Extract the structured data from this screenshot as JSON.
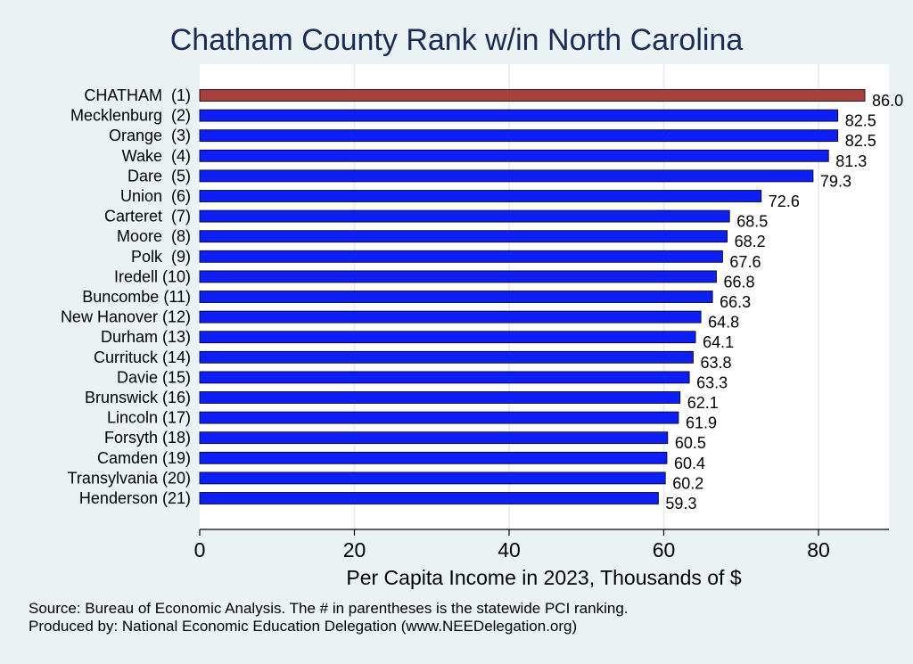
{
  "chart_data": {
    "type": "bar",
    "orientation": "horizontal",
    "title": "Chatham County Rank w/in North Carolina",
    "xlabel": "Per Capita Income in 2023, Thousands of $",
    "ylabel": "",
    "xlim": [
      0,
      88.7
    ],
    "xticks": [
      0,
      20,
      40,
      60,
      80
    ],
    "grid": true,
    "categories": [
      "CHATHAM  (1)",
      "Mecklenburg  (2)",
      "Orange  (3)",
      "Wake  (4)",
      "Dare  (5)",
      "Union  (6)",
      "Carteret  (7)",
      "Moore  (8)",
      "Polk  (9)",
      "Iredell (10)",
      "Buncombe (11)",
      "New Hanover (12)",
      "Durham (13)",
      "Currituck (14)",
      "Davie (15)",
      "Brunswick (16)",
      "Lincoln (17)",
      "Forsyth (18)",
      "Camden (19)",
      "Transylvania (20)",
      "Henderson (21)"
    ],
    "values": [
      86.0,
      82.5,
      82.5,
      81.3,
      79.3,
      72.6,
      68.5,
      68.2,
      67.6,
      66.8,
      66.3,
      64.8,
      64.1,
      63.8,
      63.3,
      62.1,
      61.9,
      60.5,
      60.4,
      60.2,
      59.3
    ],
    "value_labels": [
      "86.0",
      "82.5",
      "82.5",
      "81.3",
      "79.3",
      "72.6",
      "68.5",
      "68.2",
      "67.6",
      "66.8",
      "66.3",
      "64.8",
      "64.1",
      "63.8",
      "63.3",
      "62.1",
      "61.9",
      "60.5",
      "60.4",
      "60.2",
      "59.3"
    ],
    "highlight_index": 0,
    "colors": {
      "highlight": "#a83f3f",
      "bar": "#0d1ff5",
      "grid": "#e2ecee",
      "plot_bg": "#ffffff"
    }
  },
  "footer": {
    "source": "Source: Bureau of Economic Analysis. The # in parentheses is the statewide PCI ranking.",
    "producer": "Produced by: National Economic Education Delegation (www.NEEDelegation.org)"
  }
}
